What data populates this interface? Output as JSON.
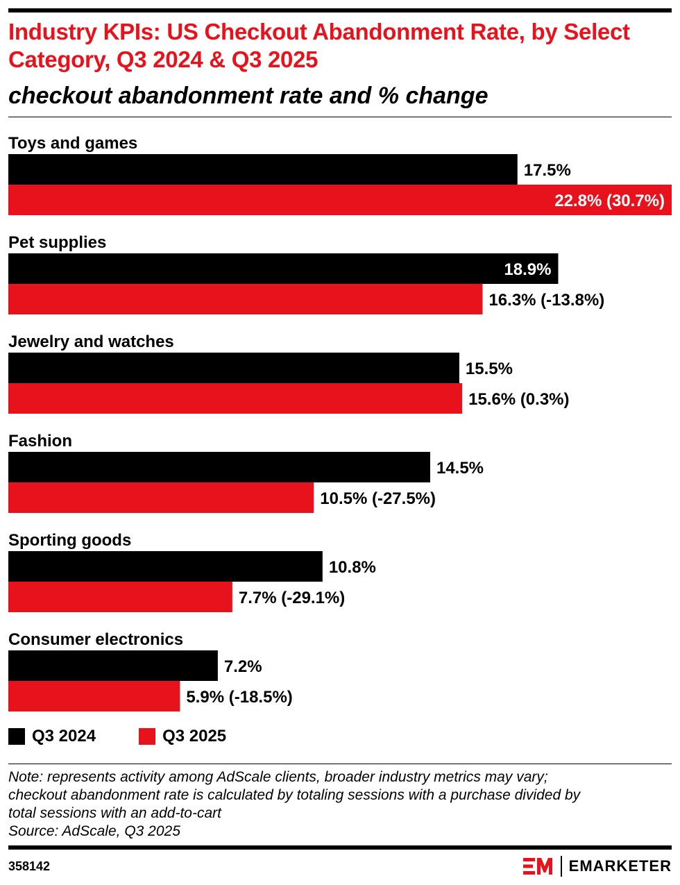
{
  "header": {
    "title": "Industry KPIs: US Checkout Abandonment Rate, by Select Category, Q3 2024 & Q3 2025",
    "subtitle": "checkout abandonment rate and % change"
  },
  "colors": {
    "q3_2024": "#000000",
    "q3_2025": "#e8121c",
    "accent": "#e8121c"
  },
  "chart_data": {
    "type": "bar",
    "orientation": "horizontal",
    "categories": [
      "Toys and games",
      "Pet supplies",
      "Jewelry and watches",
      "Fashion",
      "Sporting goods",
      "Consumer electronics"
    ],
    "series": [
      {
        "name": "Q3 2024",
        "values": [
          17.5,
          18.9,
          15.5,
          14.5,
          10.8,
          7.2
        ],
        "labels": [
          "17.5%",
          "18.9%",
          "15.5%",
          "14.5%",
          "10.8%",
          "7.2%"
        ]
      },
      {
        "name": "Q3 2025",
        "values": [
          22.8,
          16.3,
          15.6,
          10.5,
          7.7,
          5.9
        ],
        "labels": [
          "22.8% (30.7%)",
          "16.3% (-13.8%)",
          "15.6% (0.3%)",
          "10.5% (-27.5%)",
          "7.7% (-29.1%)",
          "5.9% (-18.5%)"
        ]
      }
    ],
    "xlim": [
      0,
      22.8
    ],
    "grid": false,
    "legend": "bottom-left"
  },
  "legend": {
    "items": [
      "Q3 2024",
      "Q3 2025"
    ]
  },
  "footer": {
    "note_lines": [
      "Note: represents activity among AdScale clients, broader industry metrics may vary;",
      "checkout abandonment rate is calculated by totaling sessions with a purchase divided by",
      "total sessions with an add-to-cart"
    ],
    "source": "Source: AdScale, Q3 2025",
    "chart_id": "358142",
    "brand": "EMARKETER"
  }
}
